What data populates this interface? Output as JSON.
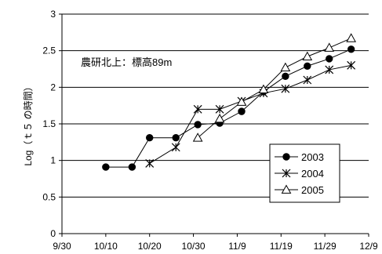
{
  "chart_data": {
    "type": "line",
    "title": "",
    "xlabel": "",
    "ylabel": "Log（ｔ５ の時間）",
    "annotation": "農研北上：標高89m",
    "x_tick_labels": [
      "9/30",
      "10/10",
      "10/20",
      "10/30",
      "11/9",
      "11/19",
      "11/29",
      "12/9"
    ],
    "xlim": [
      "2003-09-30",
      "2003-12-09"
    ],
    "ylim": [
      0,
      3
    ],
    "y_ticks": [
      0,
      0.5,
      1,
      1.5,
      2,
      2.5,
      3
    ],
    "y_tick_labels": [
      "0",
      "0.5",
      "1",
      "1.5",
      "2",
      "2.5",
      "3"
    ],
    "grid": "horizontal",
    "legend": "bottom-right",
    "series": [
      {
        "name": "2003",
        "marker": "filled-circle",
        "x": [
          "2003-10-10",
          "2003-10-16",
          "2003-10-20",
          "2003-10-26",
          "2003-10-31",
          "2003-11-05",
          "2003-11-10",
          "2003-11-15",
          "2003-11-20",
          "2003-11-25",
          "2003-11-30",
          "2003-12-05"
        ],
        "y": [
          0.91,
          0.91,
          1.31,
          1.31,
          1.49,
          1.51,
          1.67,
          1.94,
          2.15,
          2.29,
          2.39,
          2.52
        ]
      },
      {
        "name": "2004",
        "marker": "asterisk",
        "x": [
          "2003-10-20",
          "2003-10-26",
          "2003-10-31",
          "2003-11-05",
          "2003-11-10",
          "2003-11-15",
          "2003-11-20",
          "2003-11-25",
          "2003-11-30",
          "2003-12-05"
        ],
        "y": [
          0.96,
          1.18,
          1.7,
          1.7,
          1.81,
          1.92,
          1.98,
          2.1,
          2.24,
          2.3
        ]
      },
      {
        "name": "2005",
        "marker": "open-triangle",
        "x": [
          "2003-10-31",
          "2003-11-05",
          "2003-11-10",
          "2003-11-15",
          "2003-11-20",
          "2003-11-25",
          "2003-11-30",
          "2003-12-05"
        ],
        "y": [
          1.31,
          1.57,
          1.8,
          1.97,
          2.27,
          2.42,
          2.54,
          2.67
        ]
      }
    ]
  }
}
